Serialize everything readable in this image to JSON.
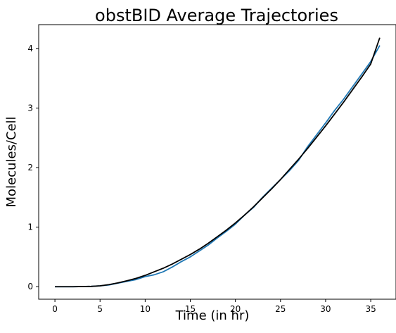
{
  "chart_data": {
    "type": "line",
    "title": "obstBID Average Trajectories",
    "xlabel": "Time (in hr)",
    "ylabel": "Molecules/Cell",
    "xlim": [
      -1.8,
      37.8
    ],
    "ylim": [
      -0.21,
      4.4
    ],
    "xticks": [
      0,
      5,
      10,
      15,
      20,
      25,
      30,
      35
    ],
    "yticks": [
      0,
      1,
      2,
      3,
      4
    ],
    "grid": false,
    "legend": "none",
    "series": [
      {
        "color": "#1f77b4",
        "x": [
          0,
          2,
          4,
          5,
          6,
          7,
          8,
          9,
          10,
          11,
          12,
          13,
          14,
          15,
          16,
          17,
          18,
          19,
          20,
          21,
          22,
          23,
          24,
          25,
          26,
          27,
          28,
          29,
          30,
          31,
          32,
          33,
          34,
          35,
          36
        ],
        "y": [
          0,
          0,
          0.005,
          0.015,
          0.03,
          0.06,
          0.09,
          0.12,
          0.17,
          0.2,
          0.25,
          0.33,
          0.42,
          0.5,
          0.6,
          0.7,
          0.82,
          0.93,
          1.05,
          1.2,
          1.33,
          1.5,
          1.65,
          1.8,
          1.95,
          2.12,
          2.35,
          2.55,
          2.75,
          2.96,
          3.15,
          3.36,
          3.57,
          3.78,
          4.05
        ]
      },
      {
        "color": "#000000",
        "x": [
          0,
          2,
          4,
          5,
          6,
          7,
          8,
          9,
          10,
          11,
          12,
          13,
          14,
          15,
          16,
          17,
          18,
          19,
          20,
          21,
          22,
          23,
          24,
          25,
          26,
          27,
          28,
          29,
          30,
          31,
          32,
          33,
          34,
          35,
          36
        ],
        "y": [
          0,
          0,
          0.005,
          0.015,
          0.035,
          0.065,
          0.1,
          0.14,
          0.19,
          0.25,
          0.31,
          0.38,
          0.46,
          0.54,
          0.63,
          0.73,
          0.84,
          0.95,
          1.07,
          1.2,
          1.34,
          1.49,
          1.64,
          1.8,
          1.97,
          2.14,
          2.32,
          2.51,
          2.7,
          2.9,
          3.1,
          3.31,
          3.52,
          3.74,
          4.18
        ]
      }
    ]
  }
}
